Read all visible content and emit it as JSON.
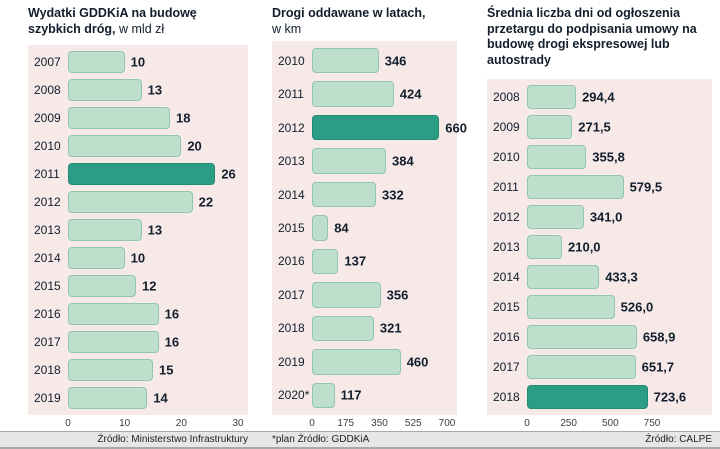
{
  "colors": {
    "bar_fill": "#bddfcc",
    "bar_border": "#93c6ae",
    "bar_highlight": "#2b9d84",
    "bar_highlight_border": "#238b74",
    "plot_bg": "#f6e9e8",
    "text_dark": "#121e2c",
    "axis_text": "#3d3d3d",
    "footer_bg": "#e6e6e6",
    "footer_text": "#1f1f1f",
    "footer_border": "#a9a9a9"
  },
  "chart_data": [
    {
      "type": "bar",
      "orientation": "horizontal",
      "title": "Wydatki GDDKiA na budowę szybkich dróg,",
      "title_unit": " w mld zł",
      "source": "Źródło: Ministerstwo Infrastruktury",
      "categories": [
        "2007",
        "2008",
        "2009",
        "2010",
        "2011",
        "2012",
        "2013",
        "2014",
        "2015",
        "2016",
        "2017",
        "2018",
        "2019"
      ],
      "values": [
        10,
        13,
        18,
        20,
        26,
        22,
        13,
        10,
        12,
        16,
        16,
        15,
        14
      ],
      "labels": [
        "10",
        "13",
        "18",
        "20",
        "26",
        "22",
        "13",
        "10",
        "12",
        "16",
        "16",
        "15",
        "14"
      ],
      "highlight_index": 4,
      "xlim": [
        0,
        30
      ],
      "ticks": [
        0,
        10,
        20,
        30
      ],
      "grid": false,
      "legend": false
    },
    {
      "type": "bar",
      "orientation": "horizontal",
      "title": "Drogi oddawane w latach,",
      "title_unit": "w km",
      "source": "*plan Źródło: GDDKiA",
      "categories": [
        "2010",
        "2011",
        "2012",
        "2013",
        "2014",
        "2015",
        "2016",
        "2017",
        "2018",
        "2019",
        "2020*"
      ],
      "values": [
        346,
        424,
        660,
        384,
        332,
        84,
        137,
        356,
        321,
        460,
        117
      ],
      "labels": [
        "346",
        "424",
        "660",
        "384",
        "332",
        "84",
        "137",
        "356",
        "321",
        "460",
        "117"
      ],
      "highlight_index": 2,
      "xlim": [
        0,
        700
      ],
      "ticks": [
        0,
        175,
        350,
        525,
        700
      ],
      "grid": false,
      "legend": false
    },
    {
      "type": "bar",
      "orientation": "horizontal",
      "title": "Średnia liczba dni od ogłoszenia przetargu do podpisania umowy na budowę drogi ekspresowej lub autostrady",
      "title_unit": "",
      "source": "Źródło: CALPE",
      "categories": [
        "2008",
        "2009",
        "2010",
        "2011",
        "2012",
        "2013",
        "2014",
        "2015",
        "2016",
        "2017",
        "2018"
      ],
      "values": [
        294.4,
        271.5,
        355.8,
        579.5,
        341.0,
        210.0,
        433.3,
        526.0,
        658.9,
        651.7,
        723.6
      ],
      "labels": [
        "294,4",
        "271,5",
        "355,8",
        "579,5",
        "341,0",
        "210,0",
        "433,3",
        "526,0",
        "658,9",
        "651,7",
        "723,6"
      ],
      "highlight_index": 10,
      "xlim": [
        0,
        750
      ],
      "ticks": [
        0,
        250,
        500,
        750
      ],
      "grid": false,
      "legend": false
    }
  ]
}
